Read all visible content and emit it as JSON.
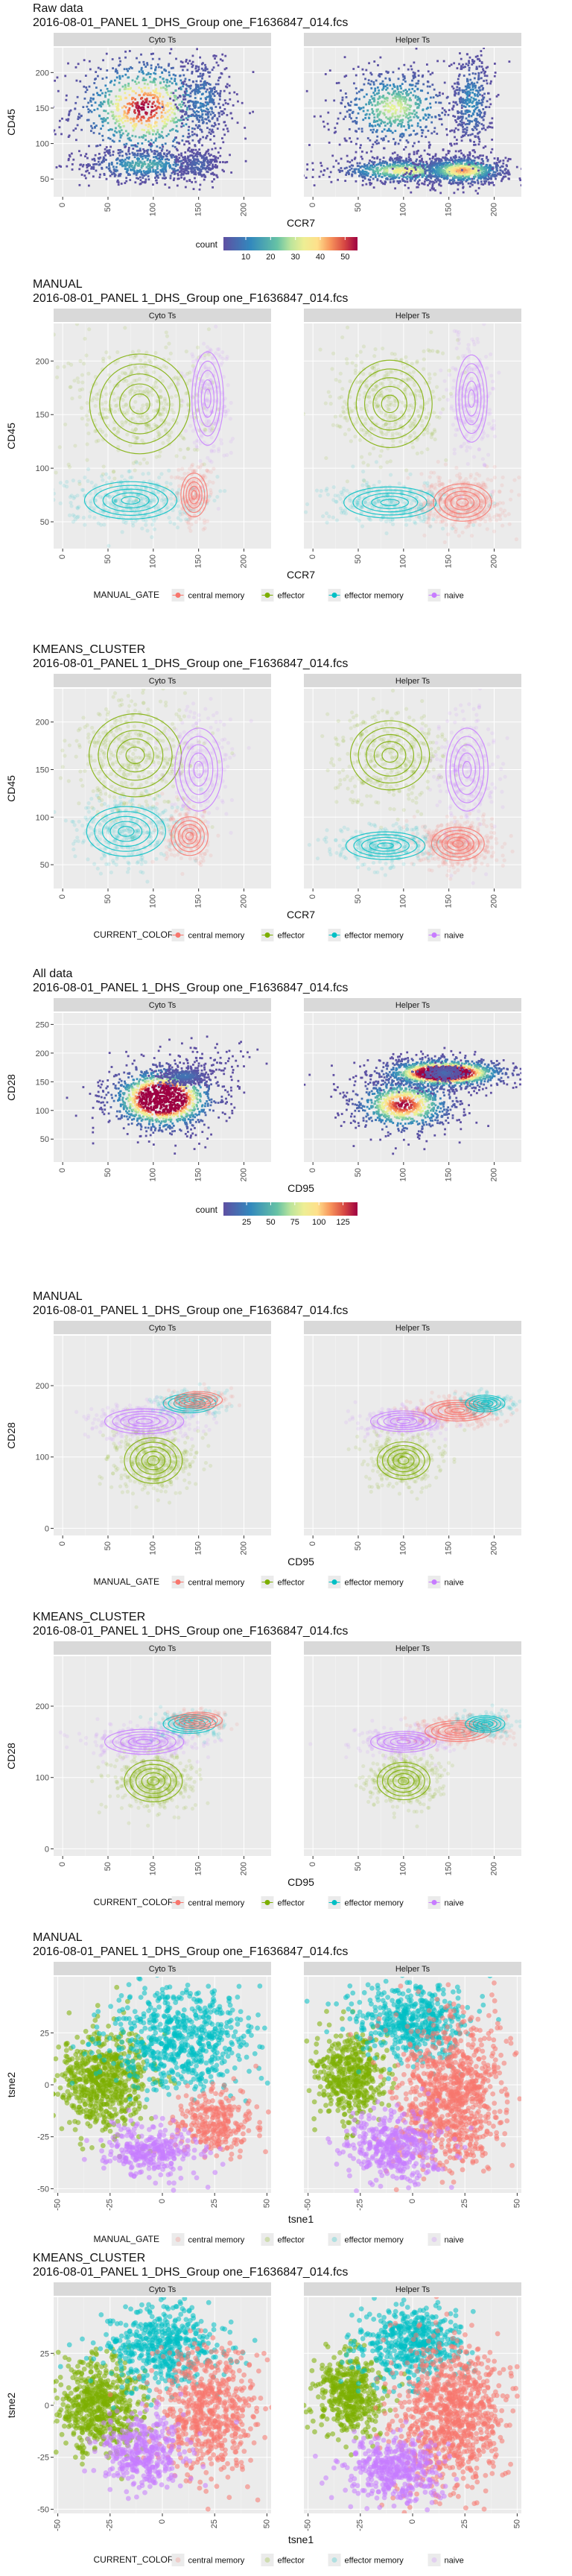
{
  "colors": {
    "central memory": "#F8766D",
    "effector": "#7CAE00",
    "effector memory": "#00BFC4",
    "naive": "#C77CFF",
    "panel_bg": "#EBEBEB",
    "strip_bg": "#D9D9D9",
    "grid": "#FFFFFF",
    "density_low": "#5E4FA2",
    "density_high": "#9E0142"
  },
  "facets": [
    "Cyto Ts",
    "Helper Ts"
  ],
  "chart_data": [
    {
      "type": "scatter",
      "title": "Raw data",
      "subtitle": "2016-08-01_PANEL 1_DHS_Group one_F1636847_014.fcs",
      "xlabel": "CCR7",
      "ylabel": "CD45",
      "xlim": [
        -10,
        230
      ],
      "ylim": [
        25,
        235
      ],
      "xticks": [
        0,
        50,
        100,
        150,
        200
      ],
      "yticks": [
        50,
        100,
        150,
        200
      ],
      "legend": {
        "title": "count",
        "kind": "colorbar",
        "ticks": [
          10,
          20,
          30,
          40,
          50
        ],
        "range": [
          1,
          55
        ],
        "placement": "bottom"
      },
      "series": [
        {
          "clusters": [
            {
              "x": 90,
              "y": 150,
              "sx": 40,
              "sy": 38,
              "n": 900,
              "label": "effector"
            },
            {
              "x": 90,
              "y": 70,
              "sx": 35,
              "sy": 12,
              "n": 500,
              "label": "effector memory"
            },
            {
              "x": 155,
              "y": 160,
              "sx": 15,
              "sy": 35,
              "n": 350,
              "label": "naive"
            },
            {
              "x": 150,
              "y": 70,
              "sx": 12,
              "sy": 12,
              "n": 250,
              "label": "central memory"
            }
          ]
        },
        {
          "clusters": [
            {
              "x": 90,
              "y": 150,
              "sx": 35,
              "sy": 30,
              "n": 650,
              "label": "effector"
            },
            {
              "x": 100,
              "y": 62,
              "sx": 40,
              "sy": 9,
              "n": 700,
              "label": "effector memory"
            },
            {
              "x": 165,
              "y": 62,
              "sx": 25,
              "sy": 10,
              "n": 800,
              "label": "central memory"
            },
            {
              "x": 175,
              "y": 160,
              "sx": 12,
              "sy": 35,
              "n": 400,
              "label": "naive"
            }
          ]
        }
      ]
    },
    {
      "type": "scatter",
      "title": "MANUAL",
      "subtitle": "2016-08-01_PANEL 1_DHS_Group one_F1636847_014.fcs",
      "xlabel": "CCR7",
      "ylabel": "CD45",
      "xlim": [
        -10,
        230
      ],
      "ylim": [
        25,
        235
      ],
      "xticks": [
        0,
        50,
        100,
        150,
        200
      ],
      "yticks": [
        50,
        100,
        150,
        200
      ],
      "legend": {
        "title": "MANUAL_GATE",
        "kind": "categorical",
        "entries": [
          "central memory",
          "effector",
          "effector memory",
          "naive"
        ],
        "placement": "bottom"
      },
      "series": [
        {
          "clusters": [
            {
              "x": 85,
              "y": 160,
              "sx": 38,
              "sy": 32,
              "n": 420,
              "label": "effector"
            },
            {
              "x": 75,
              "y": 70,
              "sx": 35,
              "sy": 12,
              "n": 380,
              "label": "effector memory"
            },
            {
              "x": 160,
              "y": 165,
              "sx": 12,
              "sy": 30,
              "n": 220,
              "label": "naive"
            },
            {
              "x": 145,
              "y": 75,
              "sx": 10,
              "sy": 14,
              "n": 200,
              "label": "central memory"
            }
          ]
        },
        {
          "clusters": [
            {
              "x": 85,
              "y": 160,
              "sx": 32,
              "sy": 28,
              "n": 380,
              "label": "effector"
            },
            {
              "x": 85,
              "y": 68,
              "sx": 35,
              "sy": 10,
              "n": 320,
              "label": "effector memory"
            },
            {
              "x": 165,
              "y": 68,
              "sx": 22,
              "sy": 12,
              "n": 520,
              "label": "central memory"
            },
            {
              "x": 175,
              "y": 165,
              "sx": 12,
              "sy": 28,
              "n": 260,
              "label": "naive"
            }
          ]
        }
      ]
    },
    {
      "type": "scatter",
      "title": "KMEANS_CLUSTER",
      "subtitle": "2016-08-01_PANEL 1_DHS_Group one_F1636847_014.fcs",
      "xlabel": "CCR7",
      "ylabel": "CD45",
      "xlim": [
        -10,
        230
      ],
      "ylim": [
        25,
        235
      ],
      "xticks": [
        0,
        50,
        100,
        150,
        200
      ],
      "yticks": [
        50,
        100,
        150,
        200
      ],
      "legend": {
        "title": "CURRENT_COLOR",
        "kind": "categorical",
        "entries": [
          "central memory",
          "effector",
          "effector memory",
          "naive"
        ],
        "placement": "bottom"
      },
      "series": [
        {
          "clusters": [
            {
              "x": 80,
              "y": 165,
              "sx": 35,
              "sy": 30,
              "n": 420,
              "label": "effector"
            },
            {
              "x": 70,
              "y": 85,
              "sx": 30,
              "sy": 18,
              "n": 380,
              "label": "effector memory"
            },
            {
              "x": 150,
              "y": 150,
              "sx": 18,
              "sy": 30,
              "n": 240,
              "label": "naive"
            },
            {
              "x": 140,
              "y": 80,
              "sx": 14,
              "sy": 14,
              "n": 220,
              "label": "central memory"
            }
          ]
        },
        {
          "clusters": [
            {
              "x": 85,
              "y": 165,
              "sx": 30,
              "sy": 25,
              "n": 360,
              "label": "effector"
            },
            {
              "x": 80,
              "y": 70,
              "sx": 30,
              "sy": 10,
              "n": 320,
              "label": "effector memory"
            },
            {
              "x": 160,
              "y": 72,
              "sx": 20,
              "sy": 12,
              "n": 520,
              "label": "central memory"
            },
            {
              "x": 170,
              "y": 150,
              "sx": 16,
              "sy": 30,
              "n": 280,
              "label": "naive"
            }
          ]
        }
      ]
    },
    {
      "type": "scatter",
      "title": "All data",
      "subtitle": "2016-08-01_PANEL 1_DHS_Group one_F1636847_014.fcs",
      "xlabel": "CD95",
      "ylabel": "CD28",
      "xlim": [
        -10,
        230
      ],
      "ylim": [
        10,
        270
      ],
      "xticks": [
        0,
        50,
        100,
        150,
        200
      ],
      "yticks": [
        50,
        100,
        150,
        200,
        250
      ],
      "legend": {
        "title": "count",
        "kind": "colorbar",
        "ticks": [
          25,
          50,
          75,
          100,
          125
        ],
        "range": [
          1,
          140
        ],
        "placement": "bottom"
      },
      "series": [
        {
          "clusters": [
            {
              "x": 110,
              "y": 120,
              "sx": 30,
              "sy": 28,
              "n": 1300,
              "label": "effector"
            },
            {
              "x": 135,
              "y": 160,
              "sx": 14,
              "sy": 8,
              "n": 300,
              "label": "naive"
            },
            {
              "x": 170,
              "y": 190,
              "sx": 25,
              "sy": 20,
              "n": 60,
              "label": "central memory"
            }
          ]
        },
        {
          "clusters": [
            {
              "x": 100,
              "y": 110,
              "sx": 30,
              "sy": 25,
              "n": 900,
              "label": "effector"
            },
            {
              "x": 145,
              "y": 165,
              "sx": 35,
              "sy": 13,
              "n": 1300,
              "label": "central memory"
            },
            {
              "x": 145,
              "y": 165,
              "sx": 10,
              "sy": 6,
              "n": 250,
              "label": "naive"
            }
          ]
        }
      ]
    },
    {
      "type": "scatter",
      "title": "MANUAL",
      "subtitle": "2016-08-01_PANEL 1_DHS_Group one_F1636847_014.fcs",
      "xlabel": "CD95",
      "ylabel": "CD28",
      "xlim": [
        -10,
        230
      ],
      "ylim": [
        -10,
        270
      ],
      "xticks": [
        0,
        50,
        100,
        150,
        200
      ],
      "yticks": [
        0,
        100,
        200
      ],
      "legend": {
        "title": "MANUAL_GATE",
        "kind": "categorical",
        "entries": [
          "central memory",
          "effector",
          "effector memory",
          "naive"
        ],
        "placement": "bottom"
      },
      "series": [
        {
          "clusters": [
            {
              "x": 100,
              "y": 95,
              "sx": 22,
              "sy": 22,
              "n": 480,
              "label": "effector"
            },
            {
              "x": 90,
              "y": 150,
              "sx": 30,
              "sy": 12,
              "n": 380,
              "label": "naive"
            },
            {
              "x": 140,
              "y": 175,
              "sx": 20,
              "sy": 9,
              "n": 200,
              "label": "effector memory"
            },
            {
              "x": 150,
              "y": 180,
              "sx": 18,
              "sy": 8,
              "n": 120,
              "label": "central memory"
            }
          ]
        },
        {
          "clusters": [
            {
              "x": 100,
              "y": 95,
              "sx": 20,
              "sy": 18,
              "n": 400,
              "label": "effector"
            },
            {
              "x": 100,
              "y": 150,
              "sx": 25,
              "sy": 10,
              "n": 320,
              "label": "naive"
            },
            {
              "x": 160,
              "y": 165,
              "sx": 25,
              "sy": 10,
              "n": 360,
              "label": "central memory"
            },
            {
              "x": 190,
              "y": 175,
              "sx": 15,
              "sy": 8,
              "n": 180,
              "label": "effector memory"
            }
          ]
        }
      ]
    },
    {
      "type": "scatter",
      "title": "KMEANS_CLUSTER",
      "subtitle": "2016-08-01_PANEL 1_DHS_Group one_F1636847_014.fcs",
      "xlabel": "CD95",
      "ylabel": "CD28",
      "xlim": [
        -10,
        230
      ],
      "ylim": [
        -10,
        270
      ],
      "xticks": [
        0,
        50,
        100,
        150,
        200
      ],
      "yticks": [
        0,
        100,
        200
      ],
      "legend": {
        "title": "CURRENT_COLOR",
        "kind": "categorical",
        "entries": [
          "central memory",
          "effector",
          "effector memory",
          "naive"
        ],
        "placement": "bottom"
      },
      "series": [
        {
          "clusters": [
            {
              "x": 100,
              "y": 95,
              "sx": 22,
              "sy": 20,
              "n": 480,
              "label": "effector"
            },
            {
              "x": 90,
              "y": 150,
              "sx": 30,
              "sy": 12,
              "n": 380,
              "label": "naive"
            },
            {
              "x": 140,
              "y": 175,
              "sx": 20,
              "sy": 9,
              "n": 200,
              "label": "effector memory"
            },
            {
              "x": 150,
              "y": 180,
              "sx": 18,
              "sy": 8,
              "n": 120,
              "label": "central memory"
            }
          ]
        },
        {
          "clusters": [
            {
              "x": 100,
              "y": 95,
              "sx": 20,
              "sy": 18,
              "n": 400,
              "label": "effector"
            },
            {
              "x": 100,
              "y": 150,
              "sx": 25,
              "sy": 10,
              "n": 320,
              "label": "naive"
            },
            {
              "x": 160,
              "y": 165,
              "sx": 25,
              "sy": 10,
              "n": 360,
              "label": "central memory"
            },
            {
              "x": 190,
              "y": 175,
              "sx": 15,
              "sy": 8,
              "n": 180,
              "label": "effector memory"
            }
          ]
        }
      ]
    },
    {
      "type": "scatter",
      "title": "MANUAL",
      "subtitle": "2016-08-01_PANEL 1_DHS_Group one_F1636847_014.fcs",
      "xlabel": "tsne1",
      "ylabel": "tsne2",
      "xlim": [
        -52,
        52
      ],
      "ylim": [
        -52,
        52
      ],
      "xticks": [
        -50,
        -25,
        0,
        25,
        50
      ],
      "yticks": [
        -50,
        -25,
        0,
        25
      ],
      "legend": {
        "title": "MANUAL_GATE",
        "kind": "categorical",
        "entries": [
          "central memory",
          "effector",
          "effector memory",
          "naive"
        ],
        "placement": "bottom"
      },
      "series": [
        {
          "clusters": [
            {
              "x": -28,
              "y": 2,
              "sx": 11,
              "sy": 12,
              "n": 650,
              "label": "effector"
            },
            {
              "x": 8,
              "y": 22,
              "sx": 17,
              "sy": 12,
              "n": 650,
              "label": "effector memory"
            },
            {
              "x": 25,
              "y": -18,
              "sx": 10,
              "sy": 8,
              "n": 280,
              "label": "central memory"
            },
            {
              "x": -5,
              "y": -32,
              "sx": 12,
              "sy": 6,
              "n": 300,
              "label": "naive"
            }
          ]
        },
        {
          "clusters": [
            {
              "x": -30,
              "y": 5,
              "sx": 8,
              "sy": 10,
              "n": 450,
              "label": "effector"
            },
            {
              "x": 0,
              "y": 30,
              "sx": 13,
              "sy": 9,
              "n": 500,
              "label": "effector memory"
            },
            {
              "x": 18,
              "y": -5,
              "sx": 13,
              "sy": 18,
              "n": 900,
              "label": "central memory"
            },
            {
              "x": -8,
              "y": -30,
              "sx": 11,
              "sy": 8,
              "n": 420,
              "label": "naive"
            }
          ]
        }
      ]
    },
    {
      "type": "scatter",
      "title": "KMEANS_CLUSTER",
      "subtitle": "2016-08-01_PANEL 1_DHS_Group one_F1636847_014.fcs",
      "xlabel": "tsne1",
      "ylabel": "tsne2",
      "xlim": [
        -52,
        52
      ],
      "ylim": [
        -52,
        52
      ],
      "xticks": [
        -50,
        -25,
        0,
        25,
        50
      ],
      "yticks": [
        -50,
        -25,
        0,
        25
      ],
      "legend": {
        "title": "CURRENT_COLOR",
        "kind": "categorical",
        "entries": [
          "central memory",
          "effector",
          "effector memory",
          "naive"
        ],
        "placement": "bottom"
      },
      "series": [
        {
          "clusters": [
            {
              "x": -30,
              "y": 0,
              "sx": 10,
              "sy": 12,
              "n": 600,
              "label": "effector"
            },
            {
              "x": 0,
              "y": 28,
              "sx": 13,
              "sy": 10,
              "n": 500,
              "label": "effector memory"
            },
            {
              "x": 22,
              "y": -5,
              "sx": 12,
              "sy": 15,
              "n": 600,
              "label": "central memory"
            },
            {
              "x": -8,
              "y": -22,
              "sx": 10,
              "sy": 9,
              "n": 380,
              "label": "naive"
            }
          ]
        },
        {
          "clusters": [
            {
              "x": -30,
              "y": 5,
              "sx": 8,
              "sy": 10,
              "n": 450,
              "label": "effector"
            },
            {
              "x": 0,
              "y": 30,
              "sx": 13,
              "sy": 9,
              "n": 500,
              "label": "effector memory"
            },
            {
              "x": 18,
              "y": -5,
              "sx": 13,
              "sy": 18,
              "n": 900,
              "label": "central memory"
            },
            {
              "x": -8,
              "y": -30,
              "sx": 11,
              "sy": 8,
              "n": 420,
              "label": "naive"
            }
          ]
        }
      ]
    }
  ]
}
